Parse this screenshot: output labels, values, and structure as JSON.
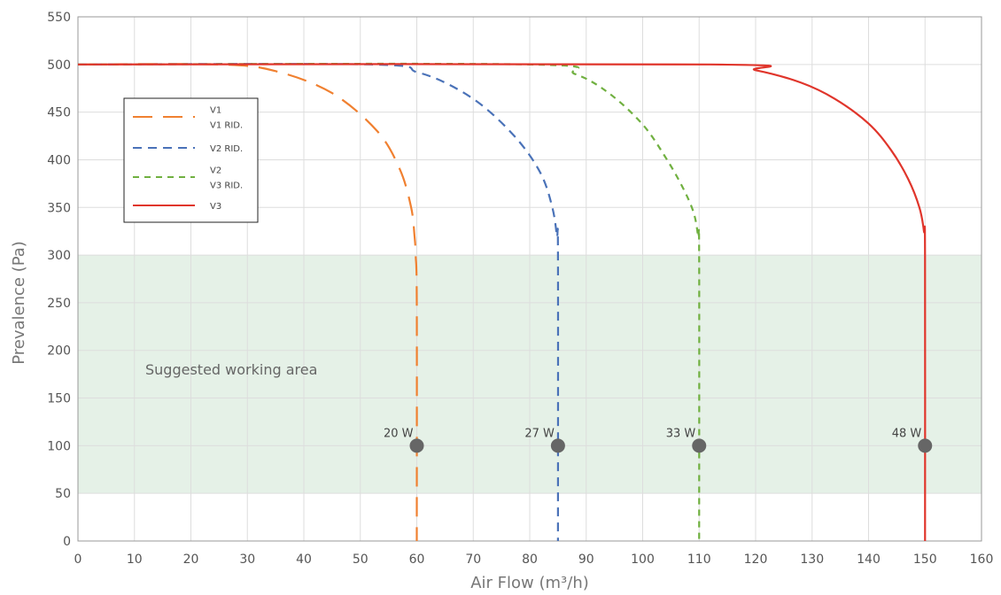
{
  "chart_data": {
    "type": "line",
    "xlabel": "Air Flow (m³/h)",
    "ylabel": "Prevalence (Pa)",
    "xlim": [
      0,
      160
    ],
    "ylim": [
      0,
      550
    ],
    "xticks": [
      "0",
      "10",
      "20",
      "30",
      "40",
      "50",
      "60",
      "70",
      "80",
      "90",
      "100",
      "110",
      "120",
      "130",
      "140",
      "150",
      "160"
    ],
    "yticks": [
      "0",
      "50",
      "100",
      "150",
      "200",
      "250",
      "300",
      "350",
      "400",
      "450",
      "500",
      "550"
    ],
    "grid": true,
    "legend_position": "top-left",
    "legend": [
      {
        "labels": [
          "V1",
          "V1 RID."
        ],
        "color": "#f08030",
        "dash": "long-dash"
      },
      {
        "labels": [
          "V2 RID."
        ],
        "color": "#4a72b8",
        "dash": "dash"
      },
      {
        "labels": [
          "V2",
          "V3 RID."
        ],
        "color": "#70b040",
        "dash": "short-dash"
      },
      {
        "labels": [
          "V3"
        ],
        "color": "#e0352b",
        "dash": "solid"
      }
    ],
    "series": [
      {
        "color": "#f08030",
        "dash": "long-dash",
        "x": [
          0,
          25,
          35,
          45,
          53,
          57,
          59,
          59.6,
          59.8,
          60,
          60
        ],
        "y": [
          500,
          500,
          493,
          470,
          430,
          390,
          350,
          320,
          300,
          250,
          0
        ]
      },
      {
        "color": "#4a72b8",
        "dash": "dash",
        "x": [
          0,
          52,
          60,
          66,
          72,
          78,
          82,
          84,
          84.8,
          85,
          85
        ],
        "y": [
          500,
          500,
          492,
          478,
          455,
          420,
          385,
          350,
          320,
          300,
          0
        ]
      },
      {
        "color": "#70b040",
        "dash": "short-dash",
        "x": [
          0,
          80,
          88,
          94,
          100,
          104,
          107,
          109,
          109.8,
          110,
          110
        ],
        "y": [
          500,
          500,
          490,
          470,
          437,
          403,
          372,
          345,
          320,
          300,
          0
        ]
      },
      {
        "color": "#e0352b",
        "dash": "solid",
        "x": [
          0,
          112,
          120,
          128,
          134,
          140,
          144,
          147,
          149,
          149.8,
          150,
          150
        ],
        "y": [
          500,
          500,
          494,
          481,
          464,
          438,
          410,
          380,
          350,
          325,
          300,
          0
        ]
      }
    ],
    "suggested_area": {
      "y_range": [
        50,
        300
      ],
      "x_range": [
        0,
        160
      ],
      "color": "#e5f1e7",
      "label": "Suggested working area"
    },
    "operating_points": [
      {
        "x": 60,
        "y": 100,
        "label": "20 W"
      },
      {
        "x": 85,
        "y": 100,
        "label": "27 W"
      },
      {
        "x": 110,
        "y": 100,
        "label": "33 W"
      },
      {
        "x": 150,
        "y": 100,
        "label": "48 W"
      }
    ]
  }
}
